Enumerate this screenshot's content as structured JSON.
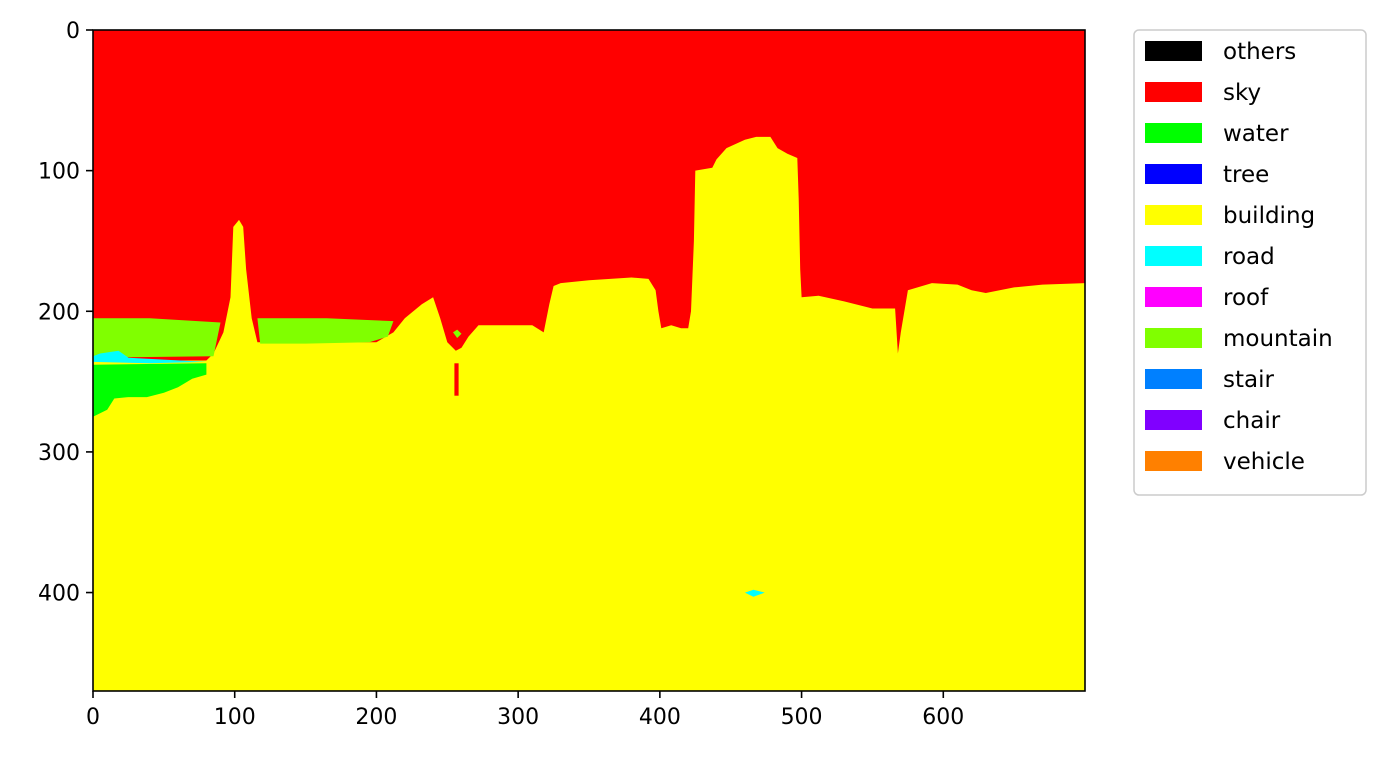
{
  "chart_data": {
    "type": "heatmap",
    "subtype": "segmentation-mask",
    "title": "",
    "xlabel": "",
    "ylabel": "",
    "xlim": [
      0,
      700
    ],
    "ylim": [
      470,
      0
    ],
    "x_ticks": [
      0,
      100,
      200,
      300,
      400,
      500,
      600
    ],
    "y_ticks": [
      0,
      100,
      200,
      300,
      400
    ],
    "grid": false,
    "legend_position": "outside-right",
    "legend": [
      {
        "label": "others",
        "color": "#000000"
      },
      {
        "label": "sky",
        "color": "#ff0000"
      },
      {
        "label": "water",
        "color": "#00ff00"
      },
      {
        "label": "tree",
        "color": "#0000ff"
      },
      {
        "label": "building",
        "color": "#ffff00"
      },
      {
        "label": "road",
        "color": "#00ffff"
      },
      {
        "label": "roof",
        "color": "#ff00ff"
      },
      {
        "label": "mountain",
        "color": "#80ff00"
      },
      {
        "label": "stair",
        "color": "#0080ff"
      },
      {
        "label": "chair",
        "color": "#8000ff"
      },
      {
        "label": "vehicle",
        "color": "#ff8000"
      }
    ],
    "regions": [
      {
        "class": "sky",
        "polygon": [
          [
            0,
            0
          ],
          [
            700,
            0
          ],
          [
            700,
            470
          ],
          [
            0,
            470
          ]
        ]
      },
      {
        "class": "building",
        "polygon": [
          [
            0,
            275
          ],
          [
            0,
            235
          ],
          [
            80,
            235
          ],
          [
            85,
            230
          ],
          [
            92,
            215
          ],
          [
            97,
            190
          ],
          [
            99,
            140
          ],
          [
            103,
            135
          ],
          [
            106,
            140
          ],
          [
            108,
            170
          ],
          [
            112,
            205
          ],
          [
            116,
            222
          ],
          [
            150,
            222
          ],
          [
            200,
            222
          ],
          [
            212,
            215
          ],
          [
            220,
            205
          ],
          [
            232,
            195
          ],
          [
            240,
            190
          ],
          [
            245,
            205
          ],
          [
            250,
            222
          ],
          [
            256,
            228
          ],
          [
            260,
            226
          ],
          [
            265,
            218
          ],
          [
            272,
            210
          ],
          [
            300,
            210
          ],
          [
            310,
            210
          ],
          [
            318,
            215
          ],
          [
            322,
            195
          ],
          [
            325,
            182
          ],
          [
            330,
            180
          ],
          [
            350,
            178
          ],
          [
            380,
            176
          ],
          [
            392,
            177
          ],
          [
            397,
            185
          ],
          [
            399,
            200
          ],
          [
            401,
            212
          ],
          [
            408,
            210
          ],
          [
            415,
            212
          ],
          [
            420,
            212
          ],
          [
            422,
            200
          ],
          [
            424,
            150
          ],
          [
            425,
            100
          ],
          [
            437,
            98
          ],
          [
            440,
            92
          ],
          [
            447,
            84
          ],
          [
            460,
            78
          ],
          [
            468,
            76
          ],
          [
            478,
            76
          ],
          [
            483,
            84
          ],
          [
            490,
            88
          ],
          [
            497,
            91
          ],
          [
            498,
            120
          ],
          [
            499,
            170
          ],
          [
            500,
            190
          ],
          [
            512,
            189
          ],
          [
            530,
            193
          ],
          [
            550,
            198
          ],
          [
            566,
            198
          ],
          [
            568,
            230
          ],
          [
            570,
            215
          ],
          [
            575,
            185
          ],
          [
            592,
            180
          ],
          [
            610,
            181
          ],
          [
            620,
            185
          ],
          [
            630,
            187
          ],
          [
            650,
            183
          ],
          [
            670,
            181
          ],
          [
            700,
            180
          ],
          [
            700,
            470
          ],
          [
            0,
            470
          ]
        ]
      },
      {
        "class": "sky",
        "polygon": [
          [
            255,
            237
          ],
          [
            258,
            237
          ],
          [
            258,
            260
          ],
          [
            255,
            260
          ]
        ]
      },
      {
        "class": "mountain",
        "polygon": [
          [
            0,
            205
          ],
          [
            40,
            205
          ],
          [
            90,
            208
          ],
          [
            85,
            232
          ],
          [
            0,
            233
          ]
        ]
      },
      {
        "class": "mountain",
        "polygon": [
          [
            116,
            205
          ],
          [
            165,
            205
          ],
          [
            212,
            207
          ],
          [
            208,
            218
          ],
          [
            195,
            222
          ],
          [
            150,
            223
          ],
          [
            118,
            223
          ]
        ]
      },
      {
        "class": "mountain",
        "polygon": [
          [
            254,
            215
          ],
          [
            257,
            213
          ],
          [
            260,
            216
          ],
          [
            257,
            219
          ]
        ]
      },
      {
        "class": "water",
        "polygon": [
          [
            0,
            238
          ],
          [
            80,
            237
          ],
          [
            80,
            245
          ],
          [
            70,
            248
          ],
          [
            60,
            254
          ],
          [
            50,
            258
          ],
          [
            38,
            261
          ],
          [
            25,
            261
          ],
          [
            15,
            262
          ],
          [
            10,
            270
          ],
          [
            0,
            275
          ]
        ]
      },
      {
        "class": "road",
        "polygon": [
          [
            0,
            232
          ],
          [
            5,
            230
          ],
          [
            18,
            228
          ],
          [
            25,
            233
          ],
          [
            80,
            236
          ],
          [
            40,
            237
          ],
          [
            0,
            236
          ]
        ]
      },
      {
        "class": "road",
        "polygon": [
          [
            460,
            400
          ],
          [
            466,
            398
          ],
          [
            474,
            400
          ],
          [
            466,
            403
          ]
        ]
      }
    ],
    "notes_omitted": false
  }
}
